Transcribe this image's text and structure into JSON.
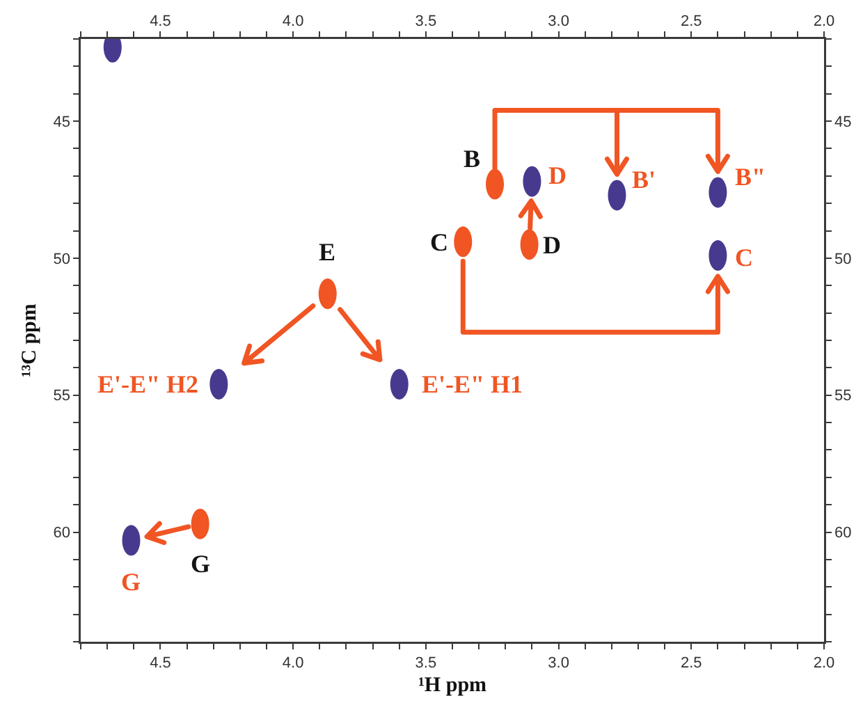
{
  "chart_data": {
    "type": "scatter",
    "xlabel": "¹H ppm",
    "ylabel": "¹³C ppm",
    "marker": "circle",
    "xlim": [
      4.8,
      2.0
    ],
    "xticks": [
      {
        "value": 4.8,
        "label": null
      },
      {
        "value": 4.7,
        "label": null
      },
      {
        "value": 4.6,
        "label": null
      },
      4.5,
      {
        "value": 4.4,
        "label": null
      },
      {
        "value": 4.3,
        "label": null
      },
      {
        "value": 4.2,
        "label": null
      },
      {
        "value": 4.1,
        "label": null
      },
      {
        "value": 4,
        "label": "4.0"
      },
      {
        "value": 3.9,
        "label": null
      },
      {
        "value": 3.8,
        "label": null
      },
      {
        "value": 3.7,
        "label": null
      },
      {
        "value": 3.6,
        "label": null
      },
      3.5,
      {
        "value": 3.4,
        "label": null
      },
      {
        "value": 3.3,
        "label": null
      },
      {
        "value": 3.2,
        "label": null
      },
      {
        "value": 3.1,
        "label": null
      },
      {
        "value": 3,
        "label": "3.0"
      },
      {
        "value": 2.9,
        "label": null
      },
      {
        "value": 2.8,
        "label": null
      },
      {
        "value": 2.7,
        "label": null
      },
      {
        "value": 2.6,
        "label": null
      },
      2.5,
      {
        "value": 2.4,
        "label": null
      },
      {
        "value": 2.3,
        "label": null
      },
      {
        "value": 2.2,
        "label": null
      },
      {
        "value": 2.1,
        "label": null
      },
      {
        "value": 2,
        "label": "2.0"
      }
    ],
    "x2lim": [
      4.8,
      2.0
    ],
    "x2ticks": [
      {
        "value": 4.8,
        "label": null
      },
      {
        "value": 4.7,
        "label": null
      },
      {
        "value": 4.6,
        "label": null
      },
      4.5,
      {
        "value": 4.4,
        "label": null
      },
      {
        "value": 4.3,
        "label": null
      },
      {
        "value": 4.2,
        "label": null
      },
      {
        "value": 4.1,
        "label": null
      },
      {
        "value": 4,
        "label": "4.0"
      },
      {
        "value": 3.9,
        "label": null
      },
      {
        "value": 3.8,
        "label": null
      },
      {
        "value": 3.7,
        "label": null
      },
      {
        "value": 3.6,
        "label": null
      },
      3.5,
      {
        "value": 3.4,
        "label": null
      },
      {
        "value": 3.3,
        "label": null
      },
      {
        "value": 3.2,
        "label": null
      },
      {
        "value": 3.1,
        "label": null
      },
      {
        "value": 3,
        "label": "3.0"
      },
      {
        "value": 2.9,
        "label": null
      },
      {
        "value": 2.8,
        "label": null
      },
      {
        "value": 2.7,
        "label": null
      },
      {
        "value": 2.6,
        "label": null
      },
      2.5,
      {
        "value": 2.4,
        "label": null
      },
      {
        "value": 2.3,
        "label": null
      },
      {
        "value": 2.2,
        "label": null
      },
      {
        "value": 2.1,
        "label": null
      },
      {
        "value": 2,
        "label": "2.0"
      }
    ],
    "ylim": [
      64,
      42
    ],
    "yticks": [
      {
        "value": 42,
        "label": null
      },
      {
        "value": 43,
        "label": null
      },
      {
        "value": 44,
        "label": null
      },
      45,
      {
        "value": 46,
        "label": null
      },
      {
        "value": 47,
        "label": null
      },
      {
        "value": 48,
        "label": null
      },
      {
        "value": 49,
        "label": null
      },
      50,
      {
        "value": 51,
        "label": null
      },
      {
        "value": 52,
        "label": null
      },
      {
        "value": 53,
        "label": null
      },
      {
        "value": 54,
        "label": null
      },
      55,
      {
        "value": 56,
        "label": null
      },
      {
        "value": 57,
        "label": null
      },
      {
        "value": 58,
        "label": null
      },
      {
        "value": 59,
        "label": null
      },
      60,
      {
        "value": 61,
        "label": null
      },
      {
        "value": 62,
        "label": null
      },
      {
        "value": 63,
        "label": null
      },
      {
        "value": 64,
        "label": null
      }
    ],
    "y2lim": [
      64,
      42
    ],
    "y2ticks": [
      {
        "value": 42,
        "label": null
      },
      {
        "value": 43,
        "label": null
      },
      {
        "value": 44,
        "label": null
      },
      45,
      {
        "value": 46,
        "label": null
      },
      {
        "value": 47,
        "label": null
      },
      {
        "value": 48,
        "label": null
      },
      {
        "value": 49,
        "label": null
      },
      50,
      {
        "value": 51,
        "label": null
      },
      {
        "value": 52,
        "label": null
      },
      {
        "value": 53,
        "label": null
      },
      {
        "value": 54,
        "label": null
      },
      55,
      {
        "value": 56,
        "label": null
      },
      {
        "value": 57,
        "label": null
      },
      {
        "value": 58,
        "label": null
      },
      {
        "value": 59,
        "label": null
      },
      60,
      {
        "value": 61,
        "label": null
      },
      {
        "value": 62,
        "label": null
      },
      {
        "value": 63,
        "label": null
      },
      {
        "value": 64,
        "label": null
      }
    ],
    "series": [
      {
        "color": "#f05523",
        "x": [
          3.24,
          3.36,
          3.11,
          3.87,
          4.35
        ],
        "values": [
          47.3,
          49.4,
          49.5,
          51.3,
          59.7
        ]
      },
      {
        "color": "#473a8e",
        "x": [
          3.1,
          2.78,
          2.4,
          2.4,
          4.28,
          3.6,
          4.61,
          4.68
        ],
        "values": [
          47.2,
          47.7,
          47.6,
          49.9,
          54.6,
          54.6,
          60.3,
          42.3
        ]
      }
    ],
    "annotations": [
      {
        "text": "B",
        "x": 3.24,
        "y": 47.3
      },
      {
        "text": "C",
        "x": 3.36,
        "y": 49.4
      },
      {
        "text": "D",
        "x": 3.11,
        "y": 49.5
      },
      {
        "text": "E",
        "x": 3.87,
        "y": 51.3
      },
      {
        "text": "G",
        "x": 4.35,
        "y": 59.7
      },
      {
        "text": "D",
        "x": 3.1,
        "y": 47.2
      },
      {
        "text": "B'",
        "x": 2.78,
        "y": 47.7
      },
      {
        "text": "B\"",
        "x": 2.4,
        "y": 47.6
      },
      {
        "text": "C",
        "x": 2.4,
        "y": 49.9
      },
      {
        "text": "E'-E\" H2",
        "x": 4.28,
        "y": 54.6
      },
      {
        "text": "E'-E\" H1",
        "x": 3.6,
        "y": 54.6
      },
      {
        "text": "G",
        "x": 4.61,
        "y": 60.3
      }
    ]
  }
}
